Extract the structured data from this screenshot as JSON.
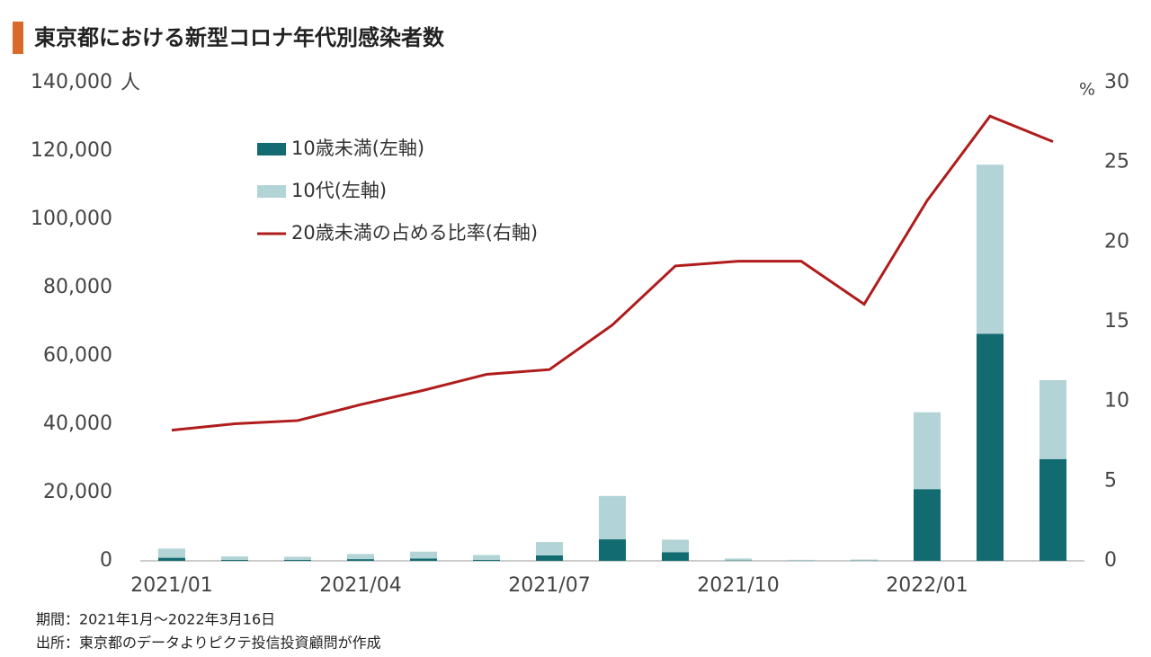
{
  "chart_data": {
    "type": "bar",
    "stacked": true,
    "title": "東京都における新型コロナ年代別感染者数",
    "y_unit": "人",
    "y2_unit": "%",
    "notes": [
      "期間：2021年1月～2022年3月16日",
      "出所：東京都のデータよりピクテ投信投資顧問が作成"
    ],
    "categories": [
      "2021/01",
      null,
      null,
      "2021/04",
      null,
      null,
      "2021/07",
      null,
      null,
      "2021/10",
      null,
      null,
      "2022/01",
      null,
      null
    ],
    "series": [
      {
        "name": "10歳未満(左軸)",
        "type": "bar",
        "color": "#136b72",
        "values": [
          900,
          300,
          300,
          500,
          700,
          300,
          1600,
          6300,
          2500,
          100,
          50,
          80,
          21000,
          66500,
          29800
        ]
      },
      {
        "name": "10代(左軸)",
        "type": "bar",
        "color": "#b3d4d6",
        "values": [
          2700,
          1000,
          900,
          1500,
          2000,
          1400,
          3900,
          12700,
          3700,
          600,
          250,
          320,
          22500,
          49500,
          23100
        ]
      },
      {
        "name": "20歳未満の占める比率(右軸)",
        "type": "line",
        "axis": "y2",
        "color": "#b01c1c",
        "values": [
          8.2,
          8.6,
          8.8,
          9.8,
          10.7,
          11.7,
          12.0,
          14.8,
          18.5,
          18.8,
          18.8,
          16.1,
          22.6,
          27.9,
          26.3
        ]
      }
    ],
    "ylim": [
      0,
      140000
    ],
    "yticks": [
      0,
      {
        "value": 20000,
        "label": "20,000"
      },
      {
        "value": 40000,
        "label": "40,000"
      },
      {
        "value": 60000,
        "label": "60,000"
      },
      {
        "value": 80000,
        "label": "80,000"
      },
      {
        "value": 100000,
        "label": "100,000"
      },
      {
        "value": 120000,
        "label": "120,000"
      },
      {
        "value": 140000,
        "label": "140,000"
      }
    ],
    "y2lim": [
      0,
      30
    ],
    "y2ticks": [
      0,
      5,
      10,
      15,
      20,
      25,
      30
    ],
    "grid": false
  }
}
